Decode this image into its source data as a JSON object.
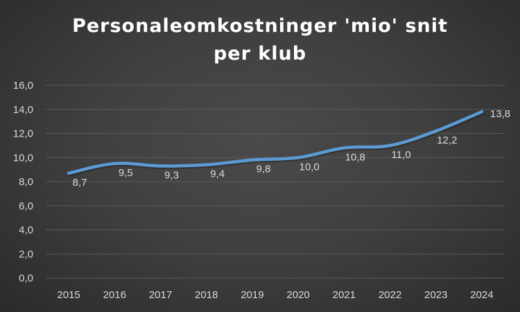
{
  "chart_data": {
    "type": "line",
    "title_line1": "Personaleomkostninger 'mio' snit",
    "title_line2": "per klub",
    "categories": [
      "2015",
      "2016",
      "2017",
      "2018",
      "2019",
      "2020",
      "2021",
      "2022",
      "2023",
      "2024"
    ],
    "series": [
      {
        "values": [
          8.7,
          9.5,
          9.3,
          9.4,
          9.8,
          10.0,
          10.8,
          11.0,
          12.2,
          13.8
        ],
        "labels": [
          "8,7",
          "9,5",
          "9,3",
          "9,4",
          "9,8",
          "10,0",
          "10,8",
          "11,0",
          "12,2",
          "13,8"
        ],
        "color": "#5b9bd5"
      }
    ],
    "ylim": [
      0,
      16
    ],
    "yticks": [
      0,
      2,
      4,
      6,
      8,
      10,
      12,
      14,
      16
    ],
    "ytick_labels": [
      "0,0",
      "2,0",
      "4,0",
      "6,0",
      "8,0",
      "10,0",
      "12,0",
      "14,0",
      "16,0"
    ],
    "grid": true,
    "legend": "none",
    "colors": {
      "background": "#404040",
      "gridline": "#5a5a5a",
      "text": "#d9d9d9",
      "title": "#ffffff"
    }
  }
}
